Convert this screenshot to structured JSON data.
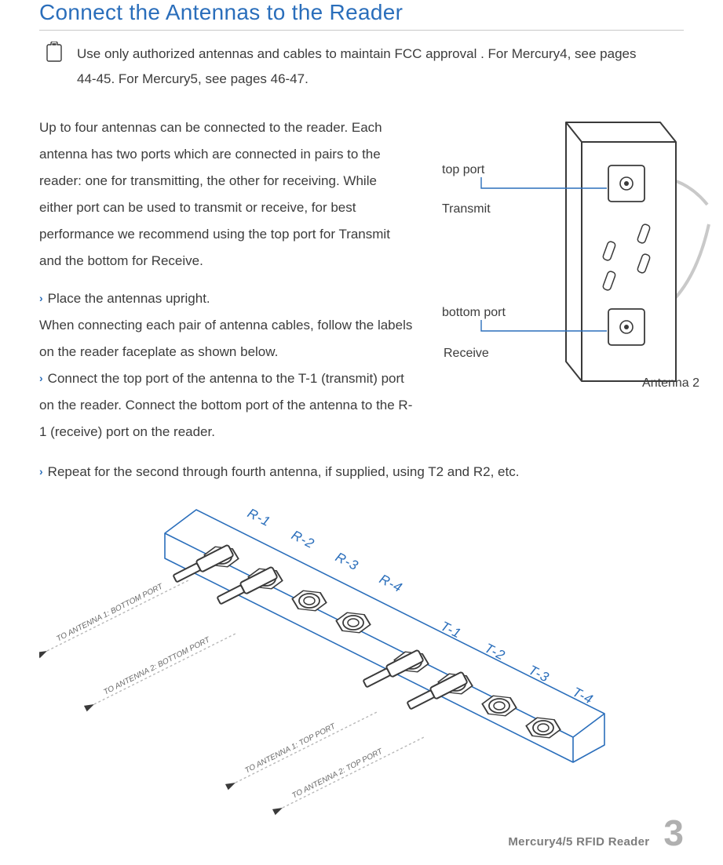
{
  "title": "Connect the Antennas to the Reader",
  "note": "Use only authorized antennas and cables to maintain FCC approval . For Mercury4, see pages 44-45. For Mercury5, see pages 46-47.",
  "para1": "Up to four antennas can be connected to the reader. Each antenna has two ports which are connected in pairs to the reader: one for transmitting, the other for receiving. While either port can be used to transmit or receive, for best performance we recommend using the top port for Transmit and the bottom for Receive.",
  "step1": "Place the antennas upright.",
  "para2": "When connecting each pair of antenna cables, follow the labels on the reader faceplate as shown below.",
  "step2": "Connect the top port of the antenna to the T-1 (transmit) port on the reader. Connect the bottom port of the antenna to the R-1 (receive) port on the reader.",
  "step3": "Repeat for the second through fourth antenna, if supplied, using T2 and R2, etc.",
  "labels": {
    "top_port": "top port",
    "transmit": "Transmit",
    "bottom_port": "bottom port",
    "receive": "Receive",
    "antenna2": "Antenna 2"
  },
  "ports": {
    "r": [
      "R-1",
      "R-2",
      "R-3",
      "R-4"
    ],
    "t": [
      "T-1",
      "T-2",
      "T-3",
      "T-4"
    ],
    "cable_labels": [
      "TO ANTENNA 1:  BOTTOM  PORT",
      "TO ANTENNA 2:  BOTTOM  PORT",
      "TO ANTENNA 1:  TOP  PORT",
      "TO ANTENNA 2:    TOP PORT"
    ]
  },
  "footer": {
    "product": "Mercury4/5 RFID Reader",
    "page": "3"
  },
  "colors": {
    "heading": "#2a6ebb",
    "text": "#3c3c3c",
    "stroke_dark": "#3a3a3a",
    "stroke_blue": "#2a6ebb",
    "stroke_grey": "#b8b8b8",
    "footer_grey": "#b0b0b0"
  }
}
